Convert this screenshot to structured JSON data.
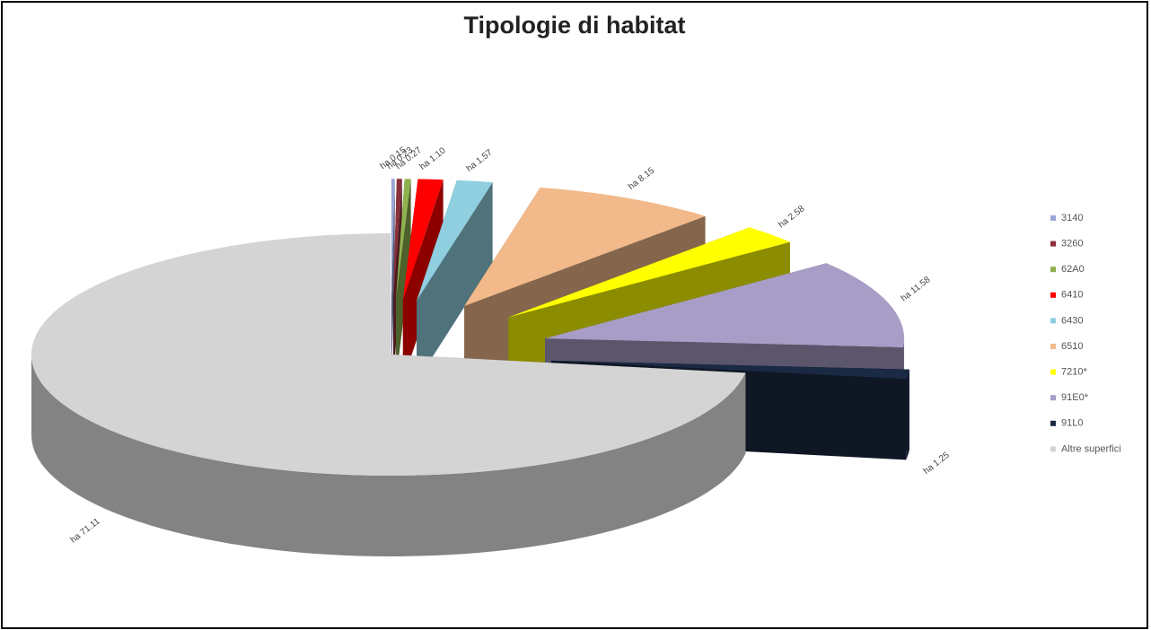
{
  "chart_data": {
    "type": "pie3d",
    "title": "Tipologie di habitat",
    "categories": [
      "3140",
      "3260",
      "62A0",
      "6410",
      "6430",
      "6510",
      "7210*",
      "91E0*",
      "91L0",
      "Altre superfici"
    ],
    "values": [
      0.15,
      0.23,
      0.27,
      1.1,
      1.57,
      8.15,
      2.58,
      11.58,
      1.25,
      71.11
    ],
    "value_labels": [
      "ha 0.15",
      "ha 0.23",
      "ha 0.27",
      "ha 1.10",
      "ha 1.57",
      "ha 8.15",
      "ha 2.58",
      "ha 11.58",
      "ha 1.25",
      "ha 71.11"
    ],
    "colors": [
      "#9aa6d6",
      "#8b2f3a",
      "#8fb14e",
      "#ff0000",
      "#8fcfe0",
      "#f2b98a",
      "#ffff00",
      "#a89dc6",
      "#1b2a44",
      "#d4d4d4"
    ],
    "exploded": [
      true,
      true,
      true,
      true,
      true,
      true,
      true,
      true,
      true,
      false
    ],
    "legend": "right"
  }
}
